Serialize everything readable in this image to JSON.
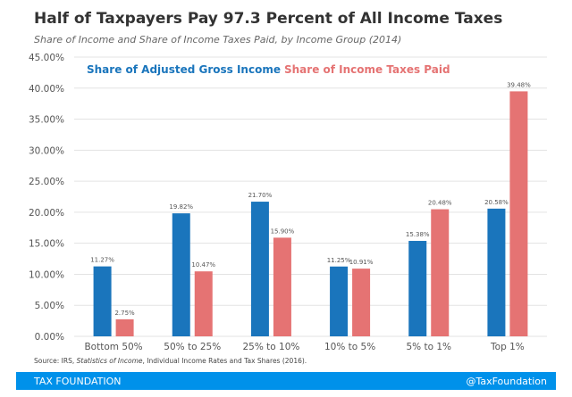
{
  "chart_data": {
    "type": "bar",
    "title": "Half of Taxpayers Pay 97.3 Percent of All Income Taxes",
    "subtitle": "Share of Income and Share of Income Taxes Paid, by Income Group (2014)",
    "categories": [
      "Bottom 50%",
      "50% to 25%",
      "25% to 10%",
      "10% to 5%",
      "5% to 1%",
      "Top 1%"
    ],
    "series": [
      {
        "name": "Share of Adjusted Gross Income",
        "color": "#1a75bc",
        "values": [
          11.27,
          19.82,
          21.7,
          11.25,
          15.38,
          20.58
        ],
        "labels": [
          "11.27%",
          "19.82%",
          "21.70%",
          "11.25%",
          "15.38%",
          "20.58%"
        ]
      },
      {
        "name": "Share of Income Taxes Paid",
        "color": "#e57373",
        "values": [
          2.75,
          10.47,
          15.9,
          10.91,
          20.48,
          39.48
        ],
        "labels": [
          "2.75%",
          "10.47%",
          "15.90%",
          "10.91%",
          "20.48%",
          "39.48%"
        ]
      }
    ],
    "ylim": [
      0,
      45
    ],
    "yticks": [
      "0.00%",
      "5.00%",
      "10.00%",
      "15.00%",
      "20.00%",
      "25.00%",
      "30.00%",
      "35.00%",
      "40.00%",
      "45.00%"
    ],
    "grid": true,
    "legend_placement": "top"
  },
  "source": {
    "prefix": "Source: IRS, ",
    "italic": "Statistics of Income",
    "suffix": ", Individual Income Rates and Tax Shares (2016)."
  },
  "footer": {
    "brand": "TAX FOUNDATION",
    "handle": "@TaxFoundation",
    "color": "#0091ea"
  }
}
